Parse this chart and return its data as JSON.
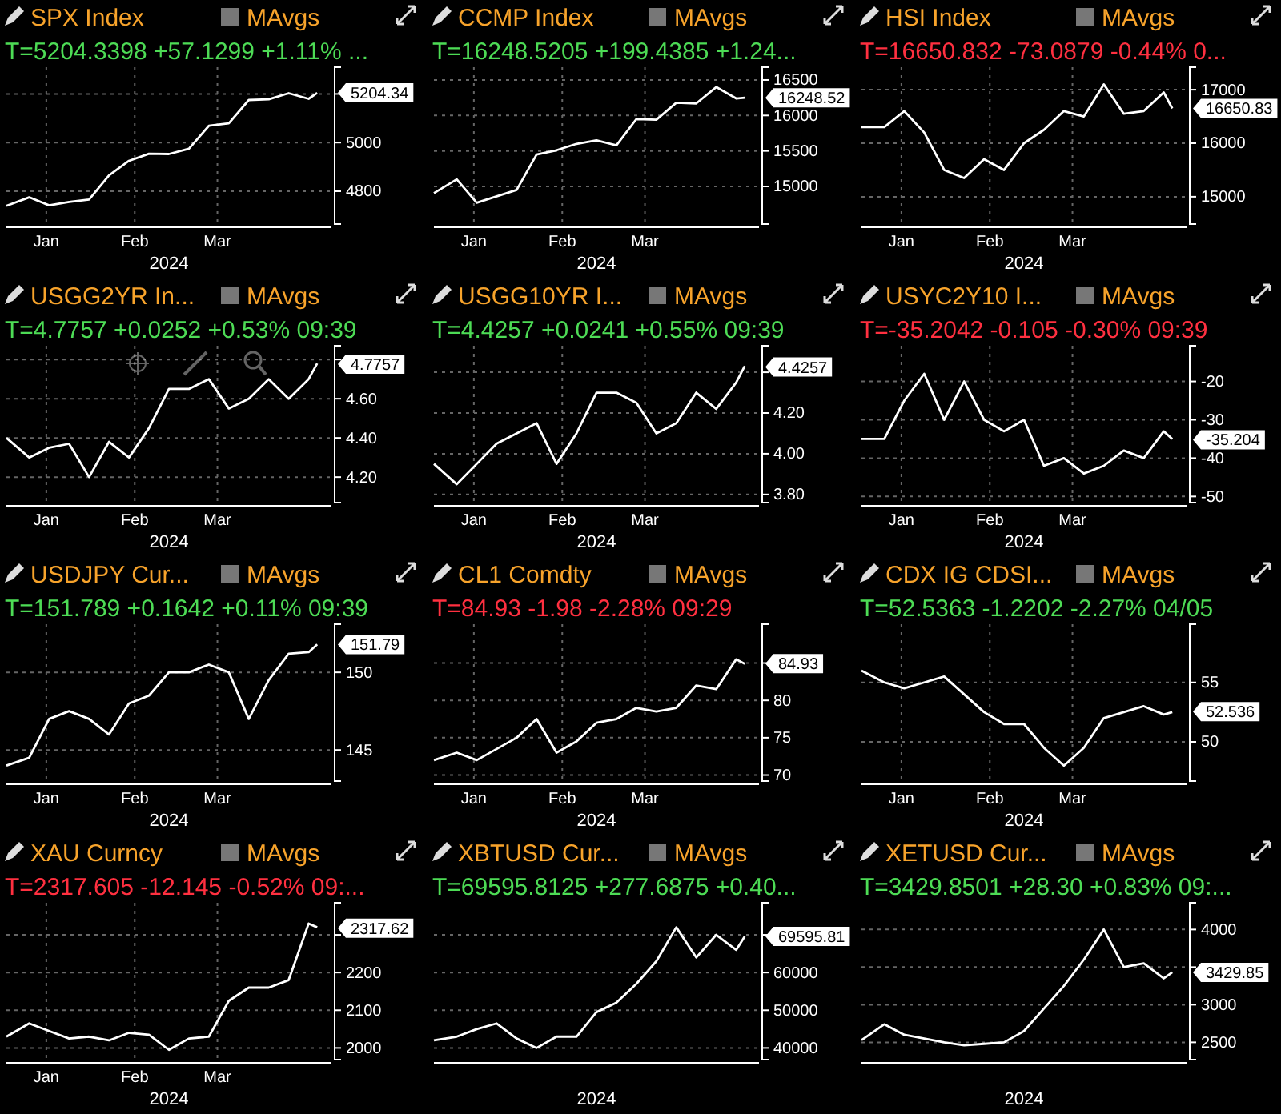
{
  "chart_data": [
    {
      "type": "line",
      "title": "SPX Index",
      "subtitle": "T=5204.3398 +57.1299 +1.11% ...",
      "xlabel": "2024",
      "annotations": [
        "MAvgs",
        {
          "text": "5204.34",
          "x": "2024-04-05",
          "y": 5204.34
        }
      ],
      "grid": true,
      "xlim": [
        "2023-12-18",
        "2024-04-10"
      ],
      "xticks": [
        {
          "value": "2024-01-01",
          "label": "Jan"
        },
        {
          "value": "2024-02-01",
          "label": "Feb"
        },
        {
          "value": "2024-03-01",
          "label": "Mar"
        }
      ],
      "ylim": [
        4665,
        5310
      ],
      "yticks": [
        4800,
        5000,
        {
          "value": 5200,
          "label": null
        }
      ],
      "x": [
        "2023-12-18",
        "2023-12-26",
        "2024-01-02",
        "2024-01-09",
        "2024-01-16",
        "2024-01-23",
        "2024-01-30",
        "2024-02-06",
        "2024-02-13",
        "2024-02-20",
        "2024-02-27",
        "2024-03-05",
        "2024-03-12",
        "2024-03-19",
        "2024-03-26",
        "2024-04-02",
        "2024-04-05"
      ],
      "series": [
        {
          "color": "#ffffff",
          "values": [
            4740,
            4775,
            4742,
            4756,
            4766,
            4865,
            4925,
            4954,
            4953,
            4975,
            5069,
            5079,
            5175,
            5178,
            5203,
            5180,
            5204
          ]
        }
      ]
    },
    {
      "type": "line",
      "title": "CCMP Index",
      "subtitle": "T=16248.5205 +199.4385 +1.24...",
      "xlabel": "2024",
      "annotations": [
        "MAvgs",
        {
          "text": "16248.52",
          "x": "2024-04-05",
          "y": 16248.52
        }
      ],
      "grid": true,
      "xlim": [
        "2023-12-18",
        "2024-04-10"
      ],
      "xticks": [
        {
          "value": "2024-01-01",
          "label": "Jan"
        },
        {
          "value": "2024-02-01",
          "label": "Feb"
        },
        {
          "value": "2024-03-01",
          "label": "Mar"
        }
      ],
      "ylim": [
        14470,
        16680
      ],
      "yticks": [
        15000,
        15500,
        16000,
        16500
      ],
      "x": [
        "2023-12-18",
        "2023-12-26",
        "2024-01-02",
        "2024-01-09",
        "2024-01-16",
        "2024-01-23",
        "2024-01-30",
        "2024-02-06",
        "2024-02-13",
        "2024-02-20",
        "2024-02-27",
        "2024-03-05",
        "2024-03-12",
        "2024-03-19",
        "2024-03-26",
        "2024-04-02",
        "2024-04-05"
      ],
      "series": [
        {
          "color": "#ffffff",
          "values": [
            14905,
            15100,
            14770,
            14860,
            14950,
            15450,
            15510,
            15600,
            15650,
            15580,
            15950,
            15940,
            16180,
            16170,
            16400,
            16240,
            16250
          ]
        }
      ]
    },
    {
      "type": "line",
      "title": "HSI Index",
      "subtitle": "T=16650.832 -73.0879 -0.44% 0...",
      "xlabel": "2024",
      "annotations": [
        "MAvgs",
        {
          "text": "16650.83",
          "x": "2024-04-05",
          "y": 16650.83
        }
      ],
      "grid": true,
      "xlim": [
        "2023-12-18",
        "2024-04-10"
      ],
      "xticks": [
        {
          "value": "2024-01-01",
          "label": "Jan"
        },
        {
          "value": "2024-02-01",
          "label": "Feb"
        },
        {
          "value": "2024-03-01",
          "label": "Mar"
        }
      ],
      "ylim": [
        14490,
        17420
      ],
      "yticks": [
        15000,
        16000,
        17000
      ],
      "x": [
        "2023-12-18",
        "2023-12-26",
        "2024-01-02",
        "2024-01-09",
        "2024-01-16",
        "2024-01-23",
        "2024-01-30",
        "2024-02-06",
        "2024-02-13",
        "2024-02-20",
        "2024-02-27",
        "2024-03-05",
        "2024-03-12",
        "2024-03-19",
        "2024-03-26",
        "2024-04-02",
        "2024-04-05"
      ],
      "series": [
        {
          "color": "#ffffff",
          "values": [
            16300,
            16300,
            16600,
            16200,
            15500,
            15350,
            15700,
            15500,
            16000,
            16250,
            16600,
            16500,
            17100,
            16550,
            16600,
            16950,
            16650
          ]
        }
      ]
    },
    {
      "type": "line",
      "title": "USGG2YR In...",
      "subtitle": "T=4.7757 +0.0252 +0.53% 09:39",
      "xlabel": "2024",
      "annotations": [
        "MAvgs",
        {
          "text": "4.7757",
          "x": "2024-04-05",
          "y": 4.7757
        }
      ],
      "grid": true,
      "xlim": [
        "2023-12-18",
        "2024-04-10"
      ],
      "xticks": [
        {
          "value": "2024-01-01",
          "label": "Jan"
        },
        {
          "value": "2024-02-01",
          "label": "Feb"
        },
        {
          "value": "2024-03-01",
          "label": "Mar"
        }
      ],
      "ylim": [
        4.07,
        4.87
      ],
      "yticks": [
        {
          "value": 4.2,
          "label": "4.20"
        },
        {
          "value": 4.4,
          "label": "4.40"
        },
        {
          "value": 4.6,
          "label": "4.60"
        },
        {
          "value": 4.8,
          "label": null
        }
      ],
      "x": [
        "2023-12-18",
        "2023-12-26",
        "2024-01-02",
        "2024-01-09",
        "2024-01-16",
        "2024-01-23",
        "2024-01-30",
        "2024-02-06",
        "2024-02-13",
        "2024-02-20",
        "2024-02-27",
        "2024-03-05",
        "2024-03-12",
        "2024-03-19",
        "2024-03-26",
        "2024-04-02",
        "2024-04-05"
      ],
      "series": [
        {
          "color": "#ffffff",
          "values": [
            4.4,
            4.3,
            4.35,
            4.37,
            4.2,
            4.38,
            4.3,
            4.45,
            4.65,
            4.65,
            4.7,
            4.55,
            4.6,
            4.7,
            4.6,
            4.7,
            4.78
          ]
        }
      ]
    },
    {
      "type": "line",
      "title": "USGG10YR I...",
      "subtitle": "T=4.4257 +0.0241 +0.55% 09:39",
      "xlabel": "2024",
      "annotations": [
        "MAvgs",
        {
          "text": "4.4257",
          "x": "2024-04-05",
          "y": 4.4257
        }
      ],
      "grid": true,
      "xlim": [
        "2023-12-18",
        "2024-04-10"
      ],
      "xticks": [
        {
          "value": "2024-01-01",
          "label": "Jan"
        },
        {
          "value": "2024-02-01",
          "label": "Feb"
        },
        {
          "value": "2024-03-01",
          "label": "Mar"
        }
      ],
      "ylim": [
        3.76,
        4.53
      ],
      "yticks": [
        {
          "value": 3.8,
          "label": "3.80"
        },
        {
          "value": 4.0,
          "label": "4.00"
        },
        {
          "value": 4.2,
          "label": "4.20"
        },
        {
          "value": 4.4,
          "label": null
        }
      ],
      "x": [
        "2023-12-18",
        "2023-12-26",
        "2024-01-02",
        "2024-01-09",
        "2024-01-16",
        "2024-01-23",
        "2024-01-30",
        "2024-02-06",
        "2024-02-13",
        "2024-02-20",
        "2024-02-27",
        "2024-03-05",
        "2024-03-12",
        "2024-03-19",
        "2024-03-26",
        "2024-04-02",
        "2024-04-05"
      ],
      "series": [
        {
          "color": "#ffffff",
          "values": [
            3.95,
            3.85,
            3.95,
            4.05,
            4.1,
            4.15,
            3.95,
            4.1,
            4.3,
            4.3,
            4.25,
            4.1,
            4.15,
            4.3,
            4.22,
            4.35,
            4.43
          ]
        }
      ]
    },
    {
      "type": "line",
      "title": "USYC2Y10 I...",
      "subtitle": "T=-35.2042 -0.105 -0.30% 09:39",
      "xlabel": "2024",
      "annotations": [
        "MAvgs",
        {
          "text": "-35.204",
          "x": "2024-04-05",
          "y": -35.204
        }
      ],
      "grid": true,
      "xlim": [
        "2023-12-18",
        "2024-04-10"
      ],
      "xticks": [
        {
          "value": "2024-01-01",
          "label": "Jan"
        },
        {
          "value": "2024-02-01",
          "label": "Feb"
        },
        {
          "value": "2024-03-01",
          "label": "Mar"
        }
      ],
      "ylim": [
        -51.6,
        -10.7
      ],
      "yticks": [
        -50,
        -40,
        -30,
        -20
      ],
      "x": [
        "2023-12-18",
        "2023-12-26",
        "2024-01-02",
        "2024-01-09",
        "2024-01-16",
        "2024-01-23",
        "2024-01-30",
        "2024-02-06",
        "2024-02-13",
        "2024-02-20",
        "2024-02-27",
        "2024-03-05",
        "2024-03-12",
        "2024-03-19",
        "2024-03-26",
        "2024-04-02",
        "2024-04-05"
      ],
      "series": [
        {
          "color": "#ffffff",
          "values": [
            -35,
            -35,
            -25,
            -18,
            -30,
            -20,
            -30,
            -33,
            -30,
            -42,
            -40,
            -44,
            -42,
            -38,
            -40,
            -33,
            -35
          ]
        }
      ]
    },
    {
      "type": "line",
      "title": "USDJPY Cur...",
      "subtitle": "T=151.789 +0.1642 +0.11% 09:39",
      "xlabel": "2024",
      "annotations": [
        "MAvgs",
        {
          "text": "151.79",
          "x": "2024-04-05",
          "y": 151.79
        }
      ],
      "grid": true,
      "xlim": [
        "2023-12-18",
        "2024-04-10"
      ],
      "xticks": [
        {
          "value": "2024-01-01",
          "label": "Jan"
        },
        {
          "value": "2024-02-01",
          "label": "Feb"
        },
        {
          "value": "2024-03-01",
          "label": "Mar"
        }
      ],
      "ylim": [
        143,
        153.1
      ],
      "yticks": [
        145,
        150
      ],
      "x": [
        "2023-12-18",
        "2023-12-26",
        "2024-01-02",
        "2024-01-09",
        "2024-01-16",
        "2024-01-23",
        "2024-01-30",
        "2024-02-06",
        "2024-02-13",
        "2024-02-20",
        "2024-02-27",
        "2024-03-05",
        "2024-03-12",
        "2024-03-19",
        "2024-03-26",
        "2024-04-02",
        "2024-04-05"
      ],
      "series": [
        {
          "color": "#ffffff",
          "values": [
            144,
            144.5,
            147,
            147.5,
            147,
            146,
            148,
            148.5,
            150,
            150,
            150.5,
            150,
            147,
            149.5,
            151.2,
            151.3,
            151.8
          ]
        }
      ]
    },
    {
      "type": "line",
      "title": "CL1 Comdty",
      "subtitle": "T=84.93 -1.98 -2.28% 09:29",
      "xlabel": "2024",
      "annotations": [
        "MAvgs",
        {
          "text": "84.93",
          "x": "2024-04-05",
          "y": 84.93
        }
      ],
      "grid": true,
      "xlim": [
        "2023-12-18",
        "2024-04-10"
      ],
      "xticks": [
        {
          "value": "2024-01-01",
          "label": "Jan"
        },
        {
          "value": "2024-02-01",
          "label": "Feb"
        },
        {
          "value": "2024-03-01",
          "label": "Mar"
        }
      ],
      "ylim": [
        69.2,
        90.2
      ],
      "yticks": [
        70,
        75,
        80,
        {
          "value": 85,
          "label": null
        }
      ],
      "x": [
        "2023-12-18",
        "2023-12-26",
        "2024-01-02",
        "2024-01-09",
        "2024-01-16",
        "2024-01-23",
        "2024-01-30",
        "2024-02-06",
        "2024-02-13",
        "2024-02-20",
        "2024-02-27",
        "2024-03-05",
        "2024-03-12",
        "2024-03-19",
        "2024-03-26",
        "2024-04-02",
        "2024-04-05"
      ],
      "series": [
        {
          "color": "#ffffff",
          "values": [
            72,
            73,
            72,
            73.5,
            75,
            77.5,
            73,
            74.5,
            77,
            77.5,
            79,
            78.5,
            79,
            82,
            81.5,
            85.5,
            84.9
          ]
        }
      ]
    },
    {
      "type": "line",
      "title": "CDX IG CDSI...",
      "subtitle": "T=52.5363 -1.2202 -2.27% 04/05",
      "xlabel": "2024",
      "annotations": [
        "MAvgs",
        {
          "text": "52.536",
          "x": "2024-04-05",
          "y": 52.536
        }
      ],
      "grid": true,
      "xlim": [
        "2023-12-18",
        "2024-04-10"
      ],
      "xticks": [
        {
          "value": "2024-01-01",
          "label": "Jan"
        },
        {
          "value": "2024-02-01",
          "label": "Feb"
        },
        {
          "value": "2024-03-01",
          "label": "Mar"
        }
      ],
      "ylim": [
        46.7,
        59.9
      ],
      "yticks": [
        50,
        55
      ],
      "x": [
        "2023-12-18",
        "2023-12-26",
        "2024-01-02",
        "2024-01-09",
        "2024-01-16",
        "2024-01-23",
        "2024-01-30",
        "2024-02-06",
        "2024-02-13",
        "2024-02-20",
        "2024-02-27",
        "2024-03-05",
        "2024-03-12",
        "2024-03-19",
        "2024-03-26",
        "2024-04-02",
        "2024-04-05"
      ],
      "series": [
        {
          "color": "#ffffff",
          "values": [
            56,
            55,
            54.5,
            55,
            55.5,
            54,
            52.5,
            51.5,
            51.5,
            49.5,
            48,
            49.5,
            52,
            52.5,
            53,
            52.3,
            52.5
          ]
        }
      ]
    },
    {
      "type": "line",
      "title": "XAU Curncy",
      "subtitle": "T=2317.605 -12.145 -0.52% 09:...",
      "xlabel": "2024",
      "annotations": [
        "MAvgs",
        {
          "text": "2317.62",
          "x": "2024-04-05",
          "y": 2317.62
        }
      ],
      "grid": true,
      "xlim": [
        "2023-12-18",
        "2024-04-10"
      ],
      "xticks": [
        {
          "value": "2024-01-01",
          "label": "Jan"
        },
        {
          "value": "2024-02-01",
          "label": "Feb"
        },
        {
          "value": "2024-03-01",
          "label": "Mar"
        }
      ],
      "ylim": [
        1969,
        2385
      ],
      "yticks": [
        2000,
        2100,
        2200,
        {
          "value": 2300,
          "label": null
        }
      ],
      "x": [
        "2023-12-18",
        "2023-12-26",
        "2024-01-02",
        "2024-01-09",
        "2024-01-16",
        "2024-01-23",
        "2024-01-30",
        "2024-02-06",
        "2024-02-13",
        "2024-02-20",
        "2024-02-27",
        "2024-03-05",
        "2024-03-12",
        "2024-03-19",
        "2024-03-26",
        "2024-04-02",
        "2024-04-05"
      ],
      "series": [
        {
          "color": "#ffffff",
          "values": [
            2030,
            2065,
            2045,
            2025,
            2030,
            2020,
            2040,
            2035,
            1995,
            2025,
            2030,
            2125,
            2160,
            2160,
            2180,
            2330,
            2320
          ]
        }
      ]
    },
    {
      "type": "line",
      "title": "XBTUSD Cur...",
      "subtitle": "T=69595.8125 +277.6875 +0.40...",
      "xlabel": "2024",
      "annotations": [
        "MAvgs",
        {
          "text": "69595.81",
          "x": "2024-04-05",
          "y": 69595.81
        }
      ],
      "grid": true,
      "xlim": [
        "2023-12-18",
        "2024-04-10"
      ],
      "ylim": [
        36900,
        78500
      ],
      "yticks": [
        40000,
        50000,
        60000,
        {
          "value": 70000,
          "label": null
        }
      ],
      "x": [
        "2023-12-18",
        "2023-12-26",
        "2024-01-02",
        "2024-01-09",
        "2024-01-16",
        "2024-01-23",
        "2024-01-30",
        "2024-02-06",
        "2024-02-13",
        "2024-02-20",
        "2024-02-27",
        "2024-03-05",
        "2024-03-12",
        "2024-03-19",
        "2024-03-26",
        "2024-04-02",
        "2024-04-05"
      ],
      "series": [
        {
          "color": "#ffffff",
          "values": [
            42000,
            43000,
            45000,
            46500,
            42500,
            40000,
            43000,
            43000,
            49500,
            52000,
            57000,
            63000,
            72000,
            64000,
            70000,
            66000,
            69600
          ]
        }
      ]
    },
    {
      "type": "line",
      "title": "XETUSD Cur...",
      "subtitle": "T=3429.8501 +28.30 +0.83% 09:...",
      "xlabel": "2024",
      "annotations": [
        "MAvgs",
        {
          "text": "3429.85",
          "x": "2024-04-05",
          "y": 3429.85
        }
      ],
      "grid": true,
      "xlim": [
        "2023-12-18",
        "2024-04-10"
      ],
      "ylim": [
        2270,
        4355
      ],
      "yticks": [
        2500,
        3000,
        {
          "value": 3500,
          "label": null
        },
        4000
      ],
      "x": [
        "2023-12-18",
        "2023-12-26",
        "2024-01-02",
        "2024-01-09",
        "2024-01-16",
        "2024-01-23",
        "2024-01-30",
        "2024-02-06",
        "2024-02-13",
        "2024-02-20",
        "2024-02-27",
        "2024-03-05",
        "2024-03-12",
        "2024-03-19",
        "2024-03-26",
        "2024-04-02",
        "2024-04-05"
      ],
      "series": [
        {
          "color": "#ffffff",
          "values": [
            2530,
            2740,
            2600,
            2550,
            2500,
            2460,
            2480,
            2500,
            2650,
            2950,
            3250,
            3600,
            4000,
            3500,
            3550,
            3350,
            3430
          ]
        }
      ]
    }
  ]
}
